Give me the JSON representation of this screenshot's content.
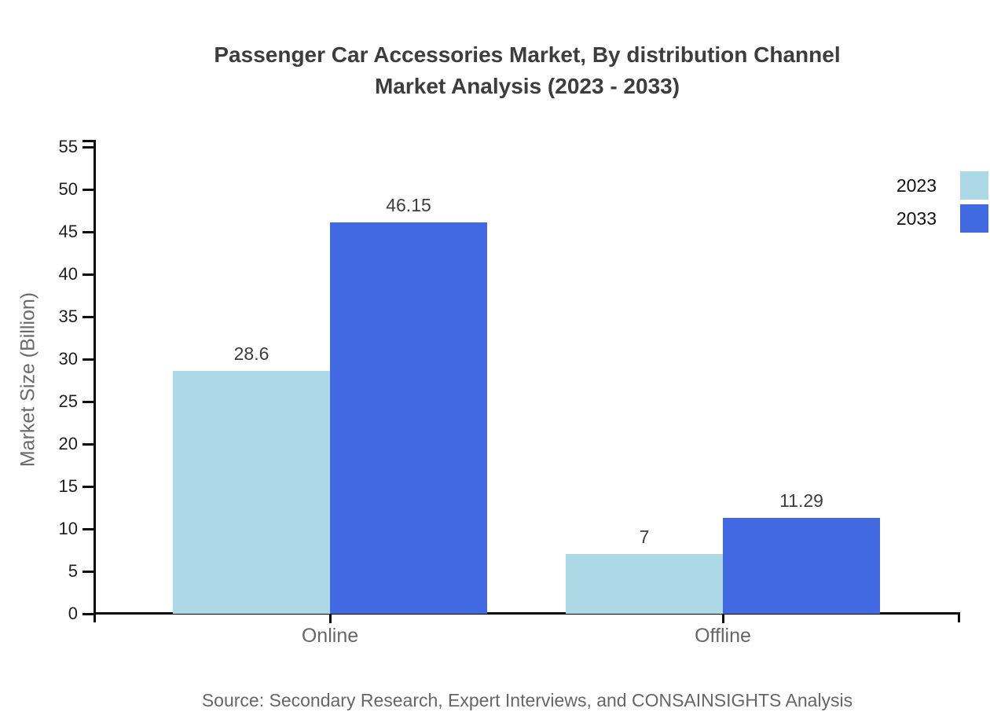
{
  "title": {
    "line1": "Passenger Car Accessories Market, By distribution Channel",
    "line2": "Market Analysis (2023 - 2033)"
  },
  "source_note": "Source: Secondary Research, Expert Interviews, and CONSAINSIGHTS Analysis",
  "chart_data": {
    "type": "bar",
    "title": "Passenger Car Accessories Market, By distribution Channel Market Analysis (2023 - 2033)",
    "xlabel": "",
    "ylabel": "Market Size (Billion)",
    "categories": [
      "Online",
      "Offline"
    ],
    "series": [
      {
        "name": "2023",
        "color": "#ADD8E6",
        "values": [
          28.6,
          7
        ],
        "labels": [
          "28.6",
          "7"
        ]
      },
      {
        "name": "2033",
        "color": "#4169E1",
        "values": [
          46.15,
          11.29
        ],
        "labels": [
          "46.15",
          "11.29"
        ]
      }
    ],
    "ylim": [
      0,
      55
    ],
    "ytick_step": 5,
    "ytick_labels": [
      "0",
      "5",
      "10",
      "15",
      "20",
      "25",
      "30",
      "35",
      "40",
      "45",
      "50",
      "55"
    ],
    "grid": false,
    "legend_position": "top-right",
    "axis_color": "#0a0a0a"
  }
}
